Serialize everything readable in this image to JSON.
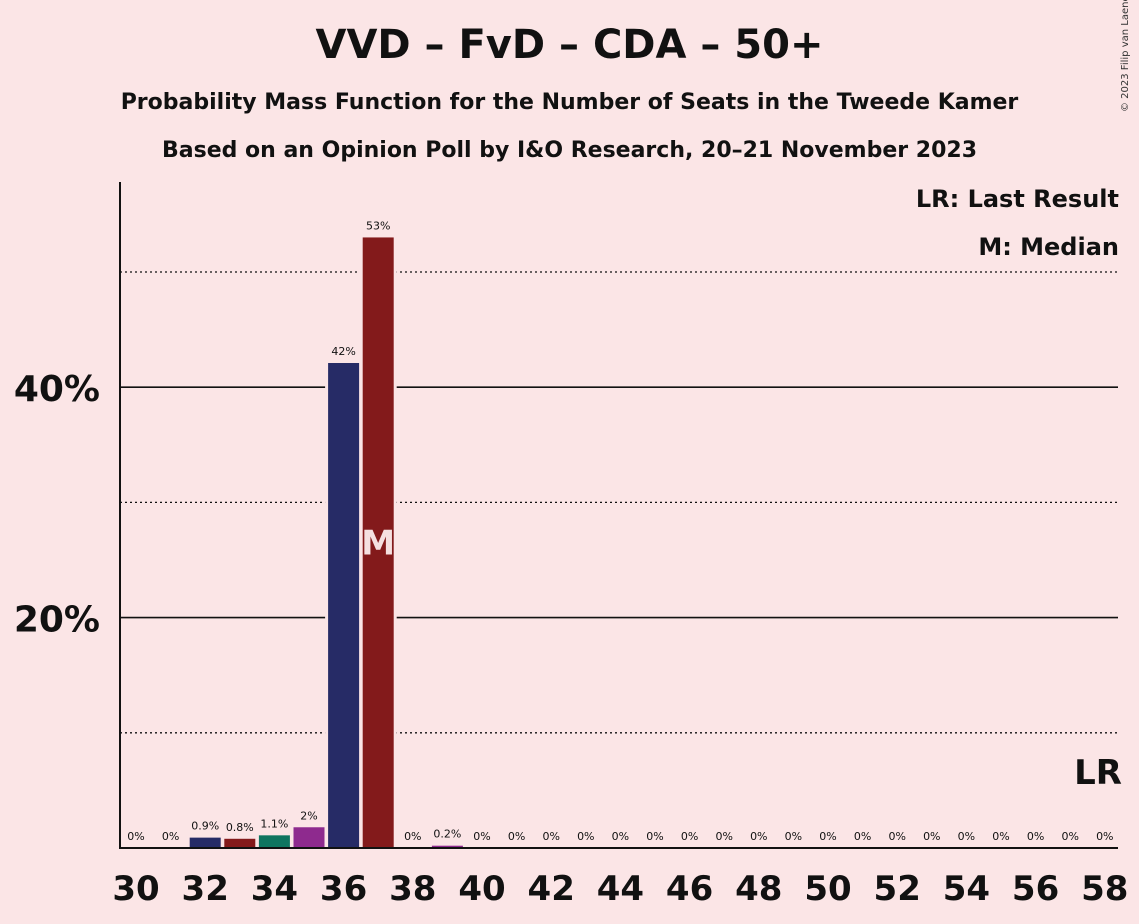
{
  "copyright": "© 2023 Filip van Laenen",
  "legend": {
    "last_result": "LR: Last Result",
    "median": "M: Median"
  },
  "chart_data": {
    "type": "bar",
    "title": "VVD – FvD – CDA – 50+",
    "subtitle": "Probability Mass Function for the Number of Seats in the Tweede Kamer",
    "subtitle2": "Based on an Opinion Poll by I&O Research, 20–21 November 2023",
    "xlim": [
      30,
      58
    ],
    "ylim": [
      0,
      58
    ],
    "y_ticks": [
      "20%",
      "40%"
    ],
    "y_tick_values": [
      20,
      40
    ],
    "y_dotted_gridlines": [
      10,
      30,
      50
    ],
    "x_ticks": [
      "30",
      "32",
      "34",
      "36",
      "38",
      "40",
      "42",
      "44",
      "46",
      "48",
      "50",
      "52",
      "54",
      "56",
      "58"
    ],
    "x_tick_values": [
      30,
      32,
      34,
      36,
      38,
      40,
      42,
      44,
      46,
      48,
      50,
      52,
      54,
      56,
      58
    ],
    "categories": [
      30,
      31,
      32,
      33,
      34,
      35,
      36,
      37,
      38,
      39,
      40,
      41,
      42,
      43,
      44,
      45,
      46,
      47,
      48,
      49,
      50,
      51,
      52,
      53,
      54,
      55,
      56,
      57,
      58
    ],
    "values": [
      0,
      0,
      0.9,
      0.8,
      1.1,
      1.8,
      42.1,
      53.0,
      0,
      0.2,
      0,
      0,
      0,
      0,
      0,
      0,
      0,
      0,
      0,
      0,
      0,
      0,
      0,
      0,
      0,
      0,
      0,
      0,
      0
    ],
    "labels": [
      "0%",
      "0%",
      "0.9%",
      "0.8%",
      "1.1%",
      "2%",
      "42%",
      "53%",
      "0%",
      "0.2%",
      "0%",
      "0%",
      "0%",
      "0%",
      "0%",
      "0%",
      "0%",
      "0%",
      "0%",
      "0%",
      "0%",
      "0%",
      "0%",
      "0%",
      "0%",
      "0%",
      "0%",
      "0%",
      "0%"
    ],
    "colors": {
      "32": "#262B66",
      "33": "#831A1B",
      "34": "#0F7560",
      "35": "#8E2A8E",
      "36": "#262B66",
      "37": "#831A1B",
      "39": "#8E2A8E"
    },
    "median_seat": 37,
    "median_label": "M",
    "last_result_seat": 58,
    "last_result_label": "LR"
  }
}
